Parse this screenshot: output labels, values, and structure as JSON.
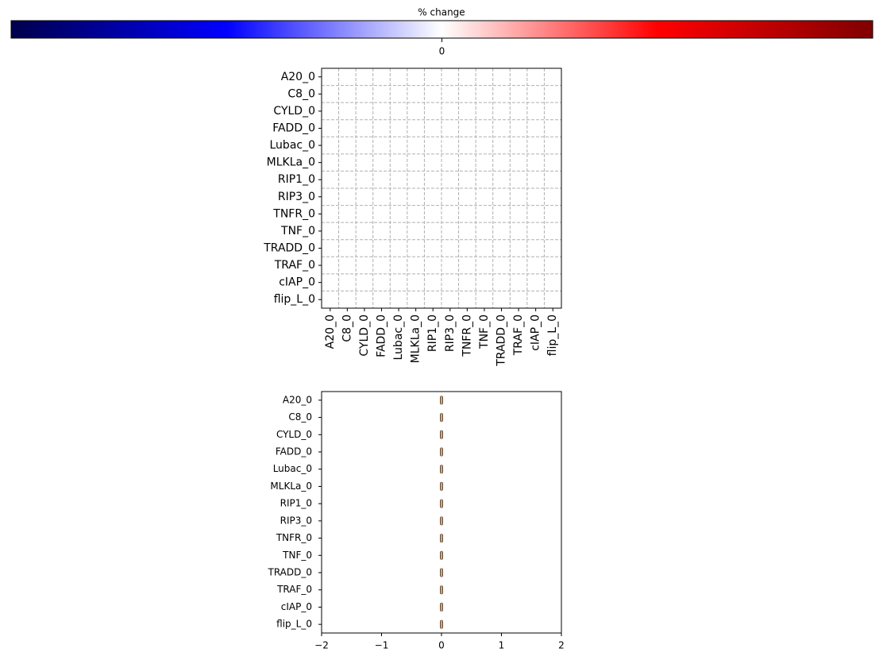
{
  "chart_data": [
    {
      "type": "heatmap",
      "colorbar": {
        "label": "% change",
        "lim": [
          -1,
          1
        ],
        "ticks": [
          0
        ],
        "cmap": "seismic"
      },
      "x_categories": [
        "A20_0",
        "C8_0",
        "CYLD_0",
        "FADD_0",
        "Lubac_0",
        "MLKLa_0",
        "RIP1_0",
        "RIP3_0",
        "TNFR_0",
        "TNF_0",
        "TRADD_0",
        "TRAF_0",
        "cIAP_0",
        "flip_L_0"
      ],
      "y_categories": [
        "A20_0",
        "C8_0",
        "CYLD_0",
        "FADD_0",
        "Lubac_0",
        "MLKLa_0",
        "RIP1_0",
        "RIP3_0",
        "TNFR_0",
        "TNF_0",
        "TRADD_0",
        "TRAF_0",
        "cIAP_0",
        "flip_L_0"
      ],
      "values": [
        [
          0,
          0,
          0,
          0,
          0,
          0,
          0,
          0,
          0,
          0,
          0,
          0,
          0,
          0
        ],
        [
          0,
          0,
          0,
          0,
          0,
          0,
          0,
          0,
          0,
          0,
          0,
          0,
          0,
          0
        ],
        [
          0,
          0,
          0,
          0,
          0,
          0,
          0,
          0,
          0,
          0,
          0,
          0,
          0,
          0
        ],
        [
          0,
          0,
          0,
          0,
          0,
          0,
          0,
          0,
          0,
          0,
          0,
          0,
          0,
          0
        ],
        [
          0,
          0,
          0,
          0,
          0,
          0,
          0,
          0,
          0,
          0,
          0,
          0,
          0,
          0
        ],
        [
          0,
          0,
          0,
          0,
          0,
          0,
          0,
          0,
          0,
          0,
          0,
          0,
          0,
          0
        ],
        [
          0,
          0,
          0,
          0,
          0,
          0,
          0,
          0,
          0,
          0,
          0,
          0,
          0,
          0
        ],
        [
          0,
          0,
          0,
          0,
          0,
          0,
          0,
          0,
          0,
          0,
          0,
          0,
          0,
          0
        ],
        [
          0,
          0,
          0,
          0,
          0,
          0,
          0,
          0,
          0,
          0,
          0,
          0,
          0,
          0
        ],
        [
          0,
          0,
          0,
          0,
          0,
          0,
          0,
          0,
          0,
          0,
          0,
          0,
          0,
          0
        ],
        [
          0,
          0,
          0,
          0,
          0,
          0,
          0,
          0,
          0,
          0,
          0,
          0,
          0,
          0
        ],
        [
          0,
          0,
          0,
          0,
          0,
          0,
          0,
          0,
          0,
          0,
          0,
          0,
          0,
          0
        ],
        [
          0,
          0,
          0,
          0,
          0,
          0,
          0,
          0,
          0,
          0,
          0,
          0,
          0,
          0
        ],
        [
          0,
          0,
          0,
          0,
          0,
          0,
          0,
          0,
          0,
          0,
          0,
          0,
          0,
          0
        ]
      ],
      "grid": true
    },
    {
      "type": "box",
      "categories": [
        "A20_0",
        "C8_0",
        "CYLD_0",
        "FADD_0",
        "Lubac_0",
        "MLKLa_0",
        "RIP1_0",
        "RIP3_0",
        "TNFR_0",
        "TNF_0",
        "TRADD_0",
        "TRAF_0",
        "cIAP_0",
        "flip_L_0"
      ],
      "values": [
        0,
        0,
        0,
        0,
        0,
        0,
        0,
        0,
        0,
        0,
        0,
        0,
        0,
        0
      ],
      "color": "#ff7f0e",
      "xlim": [
        -2,
        2
      ],
      "xticks": [
        {
          "value": -2,
          "label": "−2"
        },
        {
          "value": -1,
          "label": "−1"
        },
        0,
        1,
        2
      ]
    }
  ]
}
